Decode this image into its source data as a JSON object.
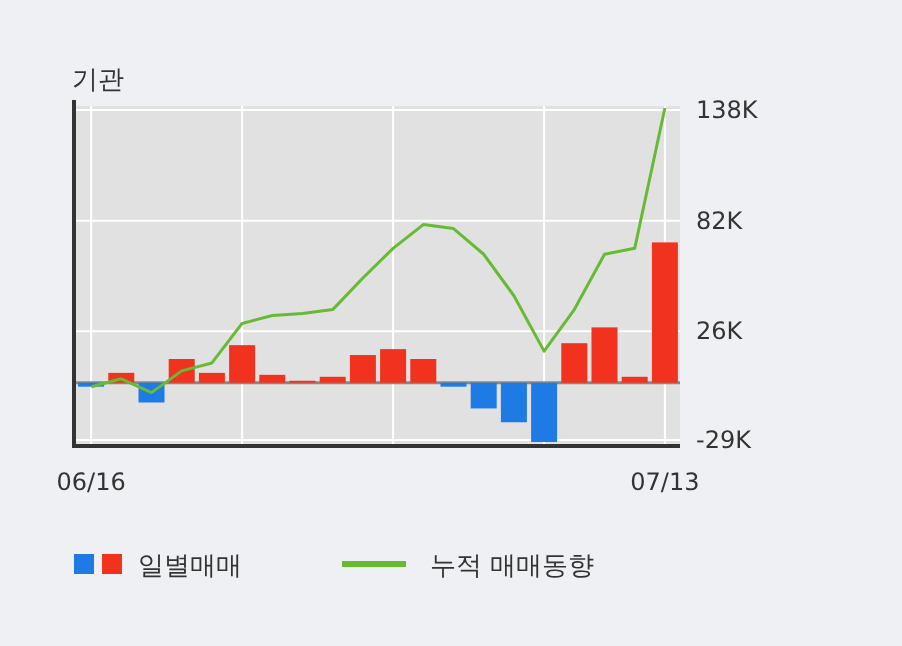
{
  "chart_data": {
    "type": "bar",
    "title": "기관",
    "categories": [
      "06/16",
      null,
      null,
      null,
      null,
      null,
      null,
      null,
      null,
      null,
      null,
      null,
      null,
      null,
      null,
      null,
      null,
      null,
      null,
      "07/13"
    ],
    "series": [
      {
        "name": "일별매매",
        "colors": [
          "#1e7be6",
          "#f0321e",
          "#1e7be6",
          "#f0321e",
          "#f0321e",
          "#f0321e",
          "#f0321e",
          "#f0321e",
          "#f0321e",
          "#f0321e",
          "#f0321e",
          "#f0321e",
          "#1e7be6",
          "#1e7be6",
          "#1e7be6",
          "#1e7be6",
          "#f0321e",
          "#f0321e",
          "#f0321e",
          "#f0321e"
        ],
        "values": [
          -2000,
          5000,
          -10000,
          12000,
          5000,
          19000,
          4000,
          1000,
          3000,
          14000,
          17000,
          12000,
          -2000,
          -13000,
          -20000,
          -30000,
          20000,
          28000,
          3000,
          71000
        ]
      },
      {
        "name": "누적 매매동향",
        "type": "line",
        "color": "#66bb33",
        "values": [
          -2000,
          2000,
          -5000,
          6000,
          10000,
          30000,
          34000,
          35000,
          37000,
          53000,
          68000,
          80000,
          78000,
          65000,
          44000,
          16000,
          37000,
          65000,
          68000,
          139000
        ]
      }
    ],
    "ylim": [
      -31000,
      140000
    ],
    "yticks": [
      {
        "value": -29000,
        "label": "-29K"
      },
      {
        "value": 26000,
        "label": "26K"
      },
      {
        "value": 82000,
        "label": "82K"
      },
      {
        "value": 138000,
        "label": "138K"
      }
    ],
    "ref_lines": [
      {
        "axis": "y",
        "value": 0,
        "color": "#888888"
      }
    ],
    "grid": true,
    "legend": "bottom"
  }
}
